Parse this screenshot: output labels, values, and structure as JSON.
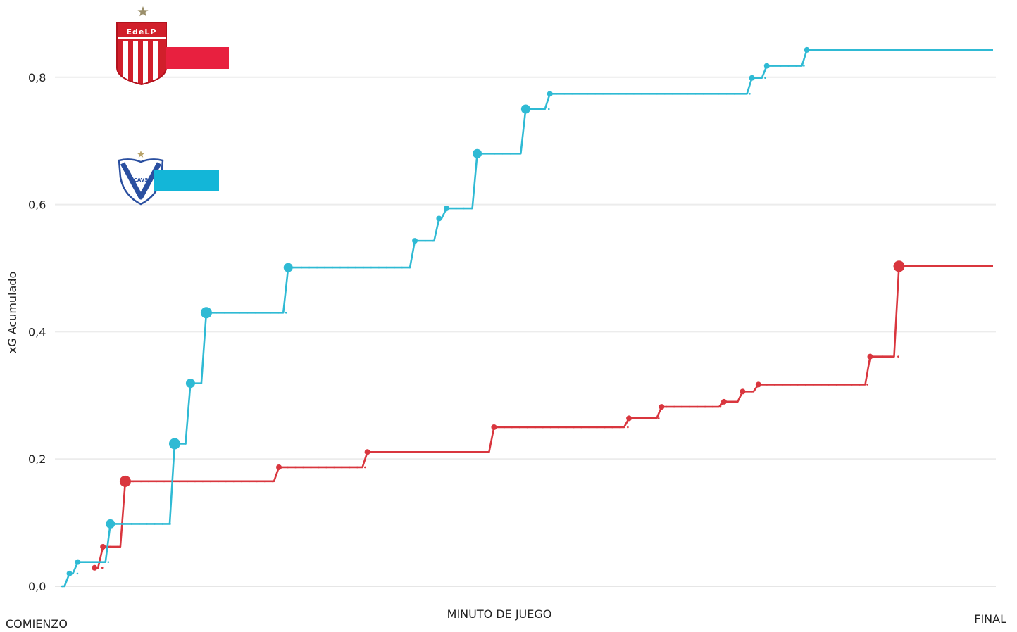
{
  "chart_data": {
    "type": "line",
    "ylabel": "xG Acumulado",
    "xlabel": "MINUTO DE JUEGO",
    "x_start_label": "COMIENZO",
    "x_end_label": "FINAL",
    "ylim": [
      0,
      0.9
    ],
    "x_range": [
      0,
      1000
    ],
    "yticks": [
      {
        "value": 0.0,
        "label": "0,0"
      },
      {
        "value": 0.2,
        "label": "0,2"
      },
      {
        "value": 0.4,
        "label": "0,4"
      },
      {
        "value": 0.6,
        "label": "0,6"
      },
      {
        "value": 0.8,
        "label": "0,8"
      }
    ],
    "grid": true,
    "series": [
      {
        "team": "Estudiantes de La Plata",
        "badge_text": "EdeLP",
        "color": "#d9363e",
        "legend_color": "#e8203f",
        "shots": [
          {
            "x": 35,
            "y": 0.029,
            "size": "small"
          },
          {
            "x": 44,
            "y": 0.062,
            "size": "small"
          },
          {
            "x": 68,
            "y": 0.165,
            "size": "large"
          },
          {
            "x": 233,
            "y": 0.187,
            "size": "small"
          },
          {
            "x": 328,
            "y": 0.211,
            "size": "small"
          },
          {
            "x": 464,
            "y": 0.25,
            "size": "small"
          },
          {
            "x": 609,
            "y": 0.264,
            "size": "small"
          },
          {
            "x": 644,
            "y": 0.282,
            "size": "small"
          },
          {
            "x": 711,
            "y": 0.29,
            "size": "small"
          },
          {
            "x": 731,
            "y": 0.306,
            "size": "small"
          },
          {
            "x": 748,
            "y": 0.317,
            "size": "small"
          },
          {
            "x": 868,
            "y": 0.361,
            "size": "small"
          },
          {
            "x": 899,
            "y": 0.503,
            "size": "large"
          }
        ]
      },
      {
        "team": "Vélez Sarsfield",
        "badge_text": "CAVS",
        "color": "#2fbad4",
        "legend_color": "#13b6d8",
        "shots": [
          {
            "x": 8,
            "y": 0.02,
            "size": "small"
          },
          {
            "x": 17,
            "y": 0.038,
            "size": "small"
          },
          {
            "x": 52,
            "y": 0.098,
            "size": "medium"
          },
          {
            "x": 121,
            "y": 0.224,
            "size": "large"
          },
          {
            "x": 138,
            "y": 0.319,
            "size": "medium"
          },
          {
            "x": 155,
            "y": 0.43,
            "size": "large"
          },
          {
            "x": 243,
            "y": 0.501,
            "size": "medium"
          },
          {
            "x": 379,
            "y": 0.543,
            "size": "small"
          },
          {
            "x": 405,
            "y": 0.578,
            "size": "small"
          },
          {
            "x": 413,
            "y": 0.594,
            "size": "small"
          },
          {
            "x": 446,
            "y": 0.68,
            "size": "medium"
          },
          {
            "x": 498,
            "y": 0.75,
            "size": "medium"
          },
          {
            "x": 524,
            "y": 0.774,
            "size": "small"
          },
          {
            "x": 741,
            "y": 0.799,
            "size": "small"
          },
          {
            "x": 757,
            "y": 0.818,
            "size": "small"
          },
          {
            "x": 800,
            "y": 0.843,
            "size": "small"
          }
        ]
      }
    ]
  }
}
